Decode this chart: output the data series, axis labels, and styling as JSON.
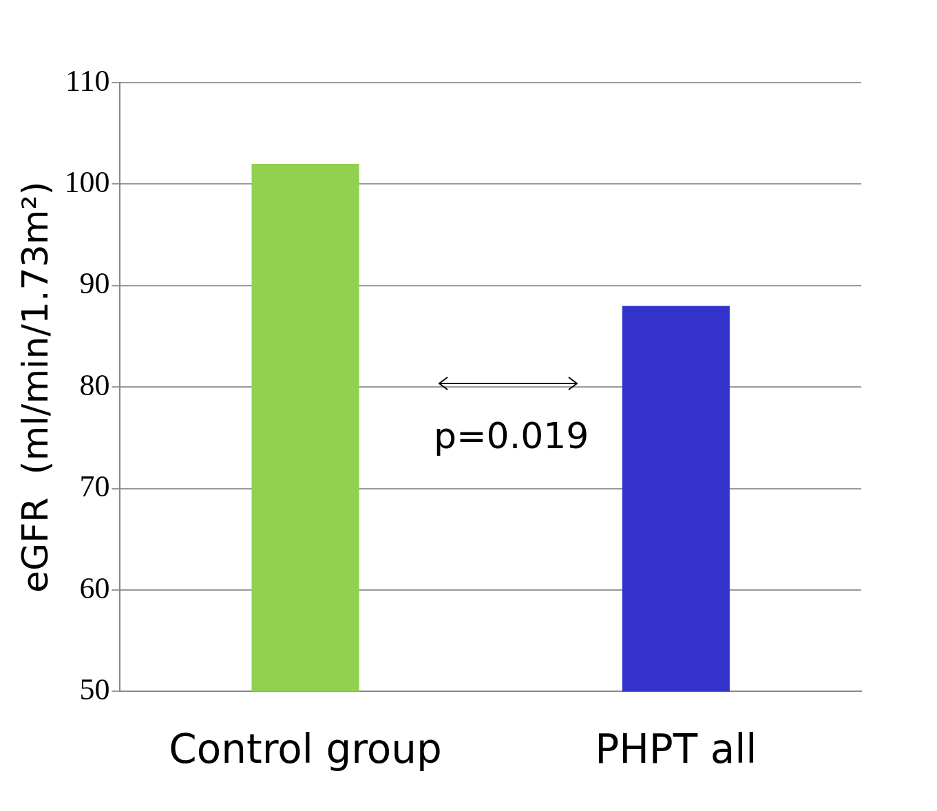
{
  "chart_data": {
    "type": "bar",
    "ylabel": "eGFR  (ml/min/1.73m²)",
    "categories": [
      "Control group",
      "PHPT all"
    ],
    "values": [
      102,
      88
    ],
    "colors": [
      "#92d050",
      "#3333cc"
    ],
    "ylim": [
      50,
      110
    ],
    "yticks": [
      50,
      60,
      70,
      80,
      90,
      100,
      110
    ],
    "grid": "y",
    "legend": false,
    "annotations": [
      "p=0.019"
    ]
  }
}
